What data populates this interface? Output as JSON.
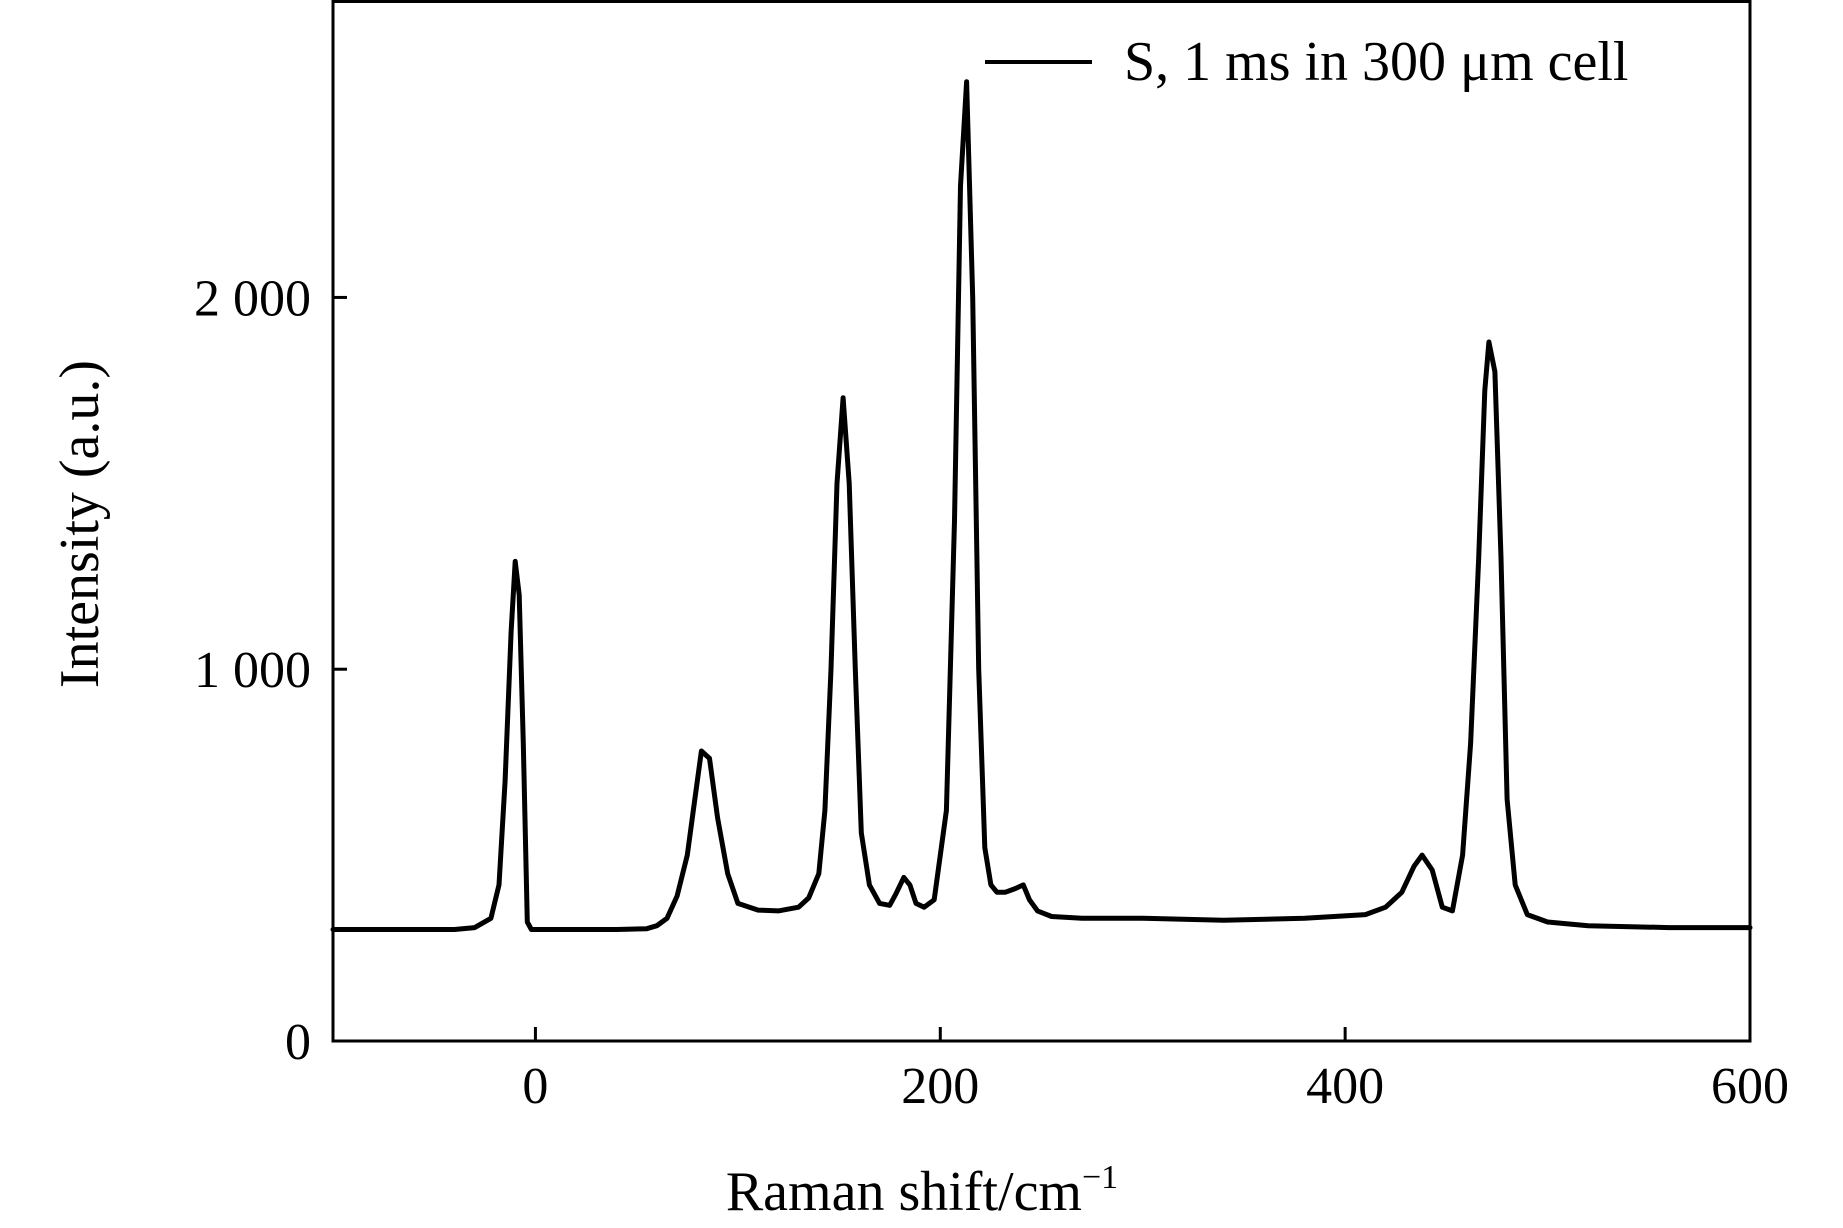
{
  "chart_data": {
    "type": "line",
    "title": "",
    "xlabel": "Raman shift/cm",
    "xlabel_superscript": "−1",
    "ylabel": "Intensity (a.u.)",
    "xlim": [
      -100,
      600
    ],
    "ylim": [
      0,
      2800
    ],
    "grid": false,
    "legend_position": "top-right",
    "x_ticks": [
      {
        "value": 0,
        "label": "0"
      },
      {
        "value": 200,
        "label": "200"
      },
      {
        "value": 400,
        "label": "400"
      },
      {
        "value": 600,
        "label": "600"
      }
    ],
    "y_ticks": [
      {
        "value": 0,
        "label": "0"
      },
      {
        "value": 1000,
        "label": "1 000"
      },
      {
        "value": 2000,
        "label": "2 000"
      }
    ],
    "series": [
      {
        "name": "S, 1 ms in 300 μm cell",
        "color": "#000000",
        "x": [
          -100,
          -80,
          -60,
          -40,
          -30,
          -22,
          -18,
          -15,
          -12,
          -10,
          -8,
          -6,
          -4,
          -2,
          0,
          2,
          4,
          8,
          20,
          40,
          55,
          60,
          65,
          70,
          75,
          78,
          82,
          86,
          90,
          95,
          100,
          110,
          120,
          130,
          135,
          140,
          143,
          146,
          149,
          152,
          155,
          158,
          161,
          165,
          170,
          175,
          178,
          182,
          185,
          188,
          192,
          197,
          203,
          207,
          210,
          213,
          216,
          219,
          222,
          225,
          228,
          232,
          237,
          241,
          244,
          248,
          255,
          270,
          300,
          340,
          380,
          410,
          420,
          428,
          434,
          438,
          443,
          448,
          453,
          458,
          462,
          466,
          469,
          471,
          474,
          477,
          480,
          484,
          490,
          500,
          520,
          560,
          600
        ],
        "values": [
          300,
          300,
          300,
          300,
          305,
          330,
          420,
          700,
          1100,
          1290,
          1200,
          800,
          320,
          300,
          300,
          300,
          300,
          300,
          300,
          300,
          302,
          310,
          330,
          390,
          500,
          620,
          780,
          760,
          600,
          450,
          370,
          352,
          350,
          360,
          385,
          450,
          620,
          1000,
          1500,
          1730,
          1500,
          1000,
          560,
          420,
          370,
          365,
          395,
          440,
          420,
          370,
          360,
          380,
          620,
          1400,
          2300,
          2580,
          2000,
          1000,
          520,
          420,
          400,
          400,
          410,
          420,
          380,
          350,
          335,
          330,
          330,
          325,
          330,
          340,
          360,
          400,
          470,
          500,
          460,
          360,
          350,
          500,
          800,
          1300,
          1750,
          1880,
          1800,
          1300,
          650,
          420,
          340,
          320,
          310,
          305,
          305
        ]
      }
    ]
  }
}
